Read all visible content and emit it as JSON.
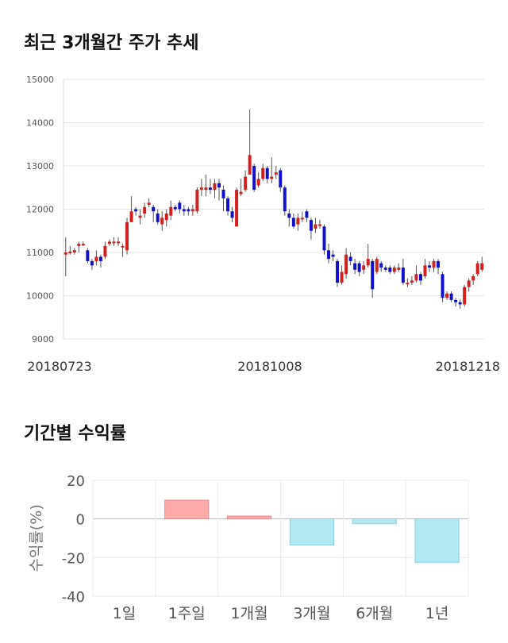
{
  "sections": {
    "price_title": "최근 3개월간 주가 추세",
    "return_title": "기간별 수익률"
  },
  "chart_data": [
    {
      "type": "candlestick",
      "title": "최근 3개월간 주가 추세",
      "ylim": [
        9000,
        15000
      ],
      "yticks": [
        "15000",
        "14000",
        "13000",
        "12000",
        "11000",
        "10000",
        "9000"
      ],
      "xtick_labels": [
        "20180723",
        "20181008",
        "20181218"
      ],
      "up_color": "#d41f1f",
      "down_color": "#1010cc",
      "grid": true,
      "candles": [
        [
          10950,
          11000,
          11350,
          10450
        ],
        [
          11000,
          11020,
          11150,
          10950
        ],
        [
          11000,
          11050,
          11100,
          10950
        ],
        [
          11150,
          11200,
          11250,
          11000
        ],
        [
          11200,
          11200,
          11250,
          11150
        ],
        [
          11050,
          10800,
          11100,
          10750
        ],
        [
          10800,
          10700,
          10850,
          10600
        ],
        [
          10800,
          10900,
          11050,
          10700
        ],
        [
          10900,
          10800,
          10950,
          10650
        ],
        [
          10900,
          11150,
          11250,
          10850
        ],
        [
          11200,
          11250,
          11300,
          11150
        ],
        [
          11250,
          11250,
          11350,
          11150
        ],
        [
          11250,
          11250,
          11350,
          11150
        ],
        [
          11150,
          11150,
          11200,
          10900
        ],
        [
          11050,
          11700,
          11800,
          10950
        ],
        [
          11700,
          11950,
          12300,
          11700
        ],
        [
          12000,
          11950,
          12050,
          11850
        ],
        [
          11800,
          11850,
          12000,
          11650
        ],
        [
          11900,
          12050,
          12150,
          11800
        ],
        [
          12100,
          12150,
          12250,
          12050
        ],
        [
          12050,
          11950,
          12100,
          11700
        ],
        [
          11900,
          11700,
          12000,
          11650
        ],
        [
          11650,
          11800,
          11950,
          11500
        ],
        [
          11750,
          11900,
          12000,
          11600
        ],
        [
          11850,
          12050,
          12200,
          11750
        ],
        [
          12050,
          12000,
          12100,
          11950
        ],
        [
          12150,
          12000,
          12200,
          11900
        ],
        [
          12000,
          11950,
          12100,
          11850
        ],
        [
          12000,
          11950,
          12050,
          11850
        ],
        [
          11950,
          12000,
          12100,
          11850
        ],
        [
          11950,
          12450,
          12500,
          11900
        ],
        [
          12450,
          12500,
          12700,
          12300
        ],
        [
          12450,
          12500,
          12800,
          12300
        ],
        [
          12500,
          12450,
          12700,
          12350
        ],
        [
          12450,
          12600,
          12700,
          12250
        ],
        [
          12600,
          12500,
          12700,
          12200
        ],
        [
          12450,
          12250,
          12550,
          11950
        ],
        [
          12250,
          11950,
          12300,
          11850
        ],
        [
          11950,
          11800,
          12050,
          11700
        ],
        [
          11600,
          12450,
          12500,
          11600
        ],
        [
          12350,
          12400,
          12700,
          12300
        ],
        [
          12450,
          12750,
          12900,
          12400
        ],
        [
          12800,
          13250,
          14300,
          12800
        ],
        [
          13000,
          12450,
          13050,
          12400
        ],
        [
          12550,
          12700,
          12850,
          12500
        ],
        [
          12700,
          12950,
          13050,
          12650
        ],
        [
          12950,
          12700,
          13000,
          12600
        ],
        [
          12700,
          12750,
          13200,
          12600
        ],
        [
          12800,
          12850,
          13000,
          12700
        ],
        [
          12900,
          12500,
          12950,
          12400
        ],
        [
          12500,
          11950,
          12550,
          11850
        ],
        [
          11900,
          11800,
          12000,
          11600
        ],
        [
          11800,
          11600,
          11900,
          11550
        ],
        [
          11650,
          11800,
          11900,
          11500
        ],
        [
          11800,
          11800,
          11950,
          11700
        ],
        [
          11950,
          11800,
          12000,
          11700
        ],
        [
          11750,
          11500,
          11800,
          11300
        ],
        [
          11550,
          11650,
          11800,
          11450
        ],
        [
          11650,
          11650,
          11750,
          11550
        ],
        [
          11600,
          11050,
          11650,
          10950
        ],
        [
          11050,
          10850,
          11200,
          10750
        ],
        [
          10950,
          10900,
          11050,
          10800
        ],
        [
          10800,
          10300,
          10850,
          10200
        ],
        [
          10300,
          10550,
          10700,
          10250
        ],
        [
          10500,
          10950,
          11100,
          10400
        ],
        [
          10900,
          10800,
          11000,
          10700
        ],
        [
          10750,
          10600,
          10850,
          10500
        ],
        [
          10750,
          10550,
          10800,
          10450
        ],
        [
          10600,
          10700,
          10800,
          10500
        ],
        [
          10700,
          10850,
          11200,
          10650
        ],
        [
          10800,
          10150,
          10850,
          9950
        ],
        [
          10550,
          10850,
          10900,
          10500
        ],
        [
          10750,
          10650,
          10800,
          10550
        ],
        [
          10650,
          10600,
          10700,
          10550
        ],
        [
          10650,
          10550,
          10700,
          10500
        ],
        [
          10550,
          10650,
          10700,
          10500
        ],
        [
          10600,
          10650,
          10750,
          10550
        ],
        [
          10650,
          10300,
          10850,
          10250
        ],
        [
          10300,
          10300,
          10400,
          10200
        ],
        [
          10300,
          10350,
          10450,
          10250
        ],
        [
          10350,
          10500,
          10700,
          10300
        ],
        [
          10500,
          10350,
          10550,
          10250
        ],
        [
          10450,
          10700,
          10850,
          10400
        ],
        [
          10700,
          10650,
          10800,
          10550
        ],
        [
          10650,
          10800,
          10850,
          10550
        ],
        [
          10800,
          10650,
          10850,
          10500
        ],
        [
          10500,
          9950,
          10550,
          9850
        ],
        [
          9950,
          10050,
          10100,
          9900
        ],
        [
          10050,
          9900,
          10100,
          9850
        ],
        [
          9900,
          9850,
          9950,
          9750
        ],
        [
          9850,
          9800,
          9900,
          9700
        ],
        [
          9800,
          10200,
          10250,
          9750
        ],
        [
          10200,
          10350,
          10400,
          10100
        ],
        [
          10350,
          10450,
          10500,
          10250
        ],
        [
          10500,
          10750,
          10800,
          10450
        ],
        [
          10600,
          10750,
          10900,
          10550
        ]
      ]
    },
    {
      "type": "bar",
      "title": "기간별 수익률",
      "ylabel": "수익률(%)",
      "ylim": [
        -40,
        20
      ],
      "yticks": [
        "20",
        "0",
        "-20",
        "-40"
      ],
      "categories": [
        "1일",
        "1주일",
        "1개월",
        "3개월",
        "6개월",
        "1년"
      ],
      "values": [
        0,
        9.7,
        1.5,
        -13.5,
        -2.5,
        -22.5
      ],
      "positive_color": "#ffaaaa",
      "negative_color": "#b0e8f4",
      "grid": true
    }
  ]
}
